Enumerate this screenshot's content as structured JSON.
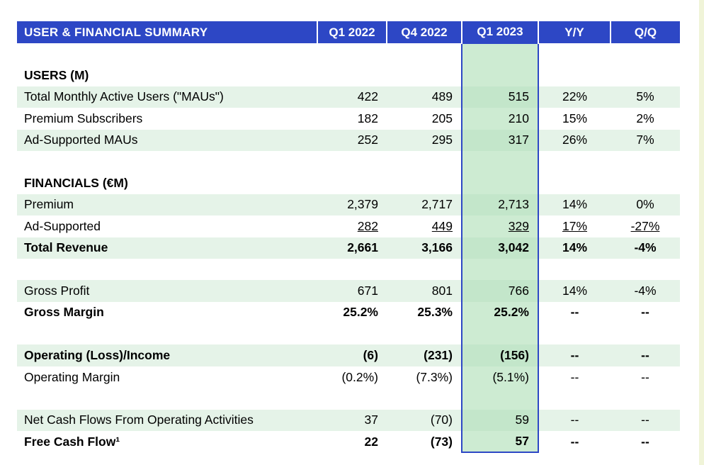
{
  "table": {
    "header": {
      "title": "USER & FINANCIAL SUMMARY",
      "columns": [
        "Q1 2022",
        "Q4 2022",
        "Q1 2023",
        "Y/Y",
        "Q/Q"
      ]
    },
    "highlight_column": "Q1 2023",
    "colors": {
      "header_bg": "#2d47c5",
      "header_text": "#ffffff",
      "band_green": "#e5f3e8",
      "highlight_green": "#cdebd2",
      "highlight_band_green": "#c3e6ca",
      "highlight_border": "#2d47c5",
      "page_edge": "#f0f4d8"
    },
    "rows": [
      {
        "type": "spacer"
      },
      {
        "type": "section",
        "label": "USERS (M)"
      },
      {
        "type": "data",
        "label": "Total Monthly Active Users (\"MAUs\")",
        "values": [
          "422",
          "489",
          "515",
          "22%",
          "5%"
        ],
        "band": true
      },
      {
        "type": "data",
        "label": "Premium Subscribers",
        "values": [
          "182",
          "205",
          "210",
          "15%",
          "2%"
        ],
        "band": false
      },
      {
        "type": "data",
        "label": "Ad-Supported MAUs",
        "values": [
          "252",
          "295",
          "317",
          "26%",
          "7%"
        ],
        "band": true
      },
      {
        "type": "spacer"
      },
      {
        "type": "section",
        "label": "FINANCIALS (€M)"
      },
      {
        "type": "data",
        "label": "Premium",
        "values": [
          "2,379",
          "2,717",
          "2,713",
          "14%",
          "0%"
        ],
        "band": true
      },
      {
        "type": "data",
        "label": "Ad-Supported",
        "values": [
          "282",
          "449",
          "329",
          "17%",
          "-27%"
        ],
        "band": false,
        "underline": true
      },
      {
        "type": "data",
        "label": "Total Revenue",
        "values": [
          "2,661",
          "3,166",
          "3,042",
          "14%",
          "-4%"
        ],
        "band": true,
        "bold": true
      },
      {
        "type": "spacer"
      },
      {
        "type": "data",
        "label": "Gross Profit",
        "values": [
          "671",
          "801",
          "766",
          "14%",
          "-4%"
        ],
        "band": true
      },
      {
        "type": "data",
        "label": "Gross Margin",
        "values": [
          "25.2%",
          "25.3%",
          "25.2%",
          "--",
          "--"
        ],
        "band": false,
        "bold": true
      },
      {
        "type": "spacer"
      },
      {
        "type": "data",
        "label": "Operating (Loss)/Income",
        "values": [
          "(6)",
          "(231)",
          "(156)",
          "--",
          "--"
        ],
        "band": true,
        "bold": true
      },
      {
        "type": "data",
        "label": "Operating Margin",
        "values": [
          "(0.2%)",
          "(7.3%)",
          "(5.1%)",
          "--",
          "--"
        ],
        "band": false
      },
      {
        "type": "spacer"
      },
      {
        "type": "data",
        "label": "Net Cash Flows From Operating Activities",
        "values": [
          "37",
          "(70)",
          "59",
          "--",
          "--"
        ],
        "band": true
      },
      {
        "type": "data",
        "label": "Free Cash Flow¹",
        "values": [
          "22",
          "(73)",
          "57",
          "--",
          "--"
        ],
        "band": false,
        "bold": true
      }
    ]
  }
}
